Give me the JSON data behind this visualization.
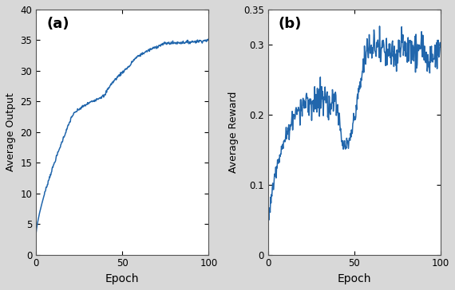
{
  "line_color": "#2166ac",
  "background_color": "#d8d8d8",
  "axes_bg": "#ffffff",
  "label_a": "(a)",
  "label_b": "(b)",
  "xlabel": "Epoch",
  "ylabel_a": "Average Output",
  "ylabel_b": "Average Reward",
  "xlim": [
    0,
    100
  ],
  "ylim_a": [
    0,
    40
  ],
  "ylim_b": [
    0,
    0.35
  ],
  "yticks_a": [
    0,
    5,
    10,
    15,
    20,
    25,
    30,
    35,
    40
  ],
  "yticks_b": [
    0,
    0.1,
    0.2,
    0.3,
    0.35
  ],
  "xticks": [
    0,
    50,
    100
  ]
}
